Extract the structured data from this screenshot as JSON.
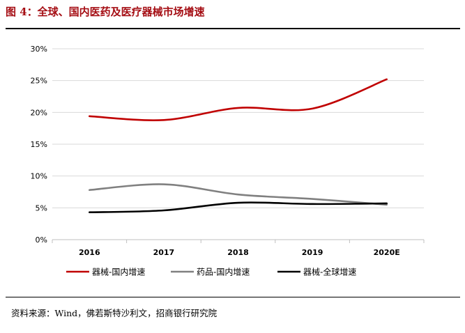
{
  "figure": {
    "title": "图 4：全球、国内医药及医疗器械市场增速",
    "source": "资料来源：Wind，佛若斯特沙利文，招商银行研究院",
    "accent_color": "#a50e14"
  },
  "chart_data": {
    "type": "line",
    "title": "",
    "xlabel": "",
    "ylabel": "",
    "categories": [
      "2016",
      "2017",
      "2018",
      "2019",
      "2020E"
    ],
    "ylim": [
      0,
      30
    ],
    "y_ticks": [
      0,
      5,
      10,
      15,
      20,
      25,
      30
    ],
    "y_tick_labels": [
      "0%",
      "5%",
      "10%",
      "15%",
      "20%",
      "25%",
      "30%"
    ],
    "grid": "horizontal",
    "legend_position": "bottom",
    "series": [
      {
        "name": "器械-国内增速",
        "color": "#c00000",
        "values": [
          19.4,
          18.8,
          20.7,
          20.6,
          25.2
        ]
      },
      {
        "name": "药品-国内增速",
        "color": "#808080",
        "values": [
          7.8,
          8.7,
          7.1,
          6.4,
          5.5
        ]
      },
      {
        "name": "器械-全球增速",
        "color": "#000000",
        "values": [
          4.3,
          4.6,
          5.8,
          5.6,
          5.7
        ]
      }
    ]
  }
}
